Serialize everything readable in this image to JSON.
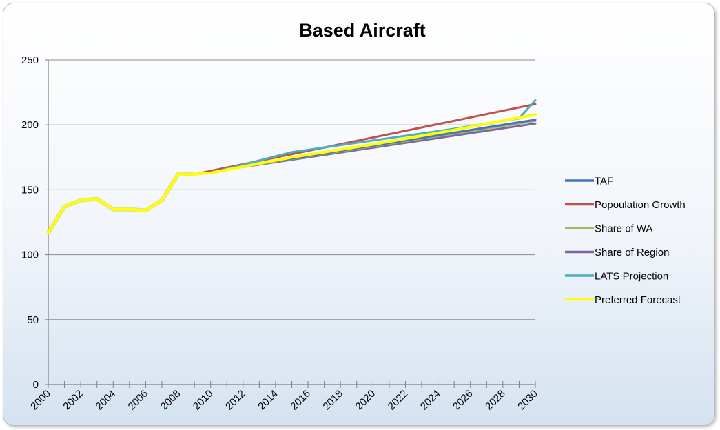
{
  "chart_data": {
    "type": "line",
    "title": "Based Aircraft",
    "xlabel": "",
    "ylabel": "",
    "ylim": [
      0,
      250
    ],
    "yticks": [
      0,
      50,
      100,
      150,
      200,
      250
    ],
    "xlim": [
      2000,
      2030
    ],
    "xticks": [
      2000,
      2002,
      2004,
      2006,
      2008,
      2010,
      2012,
      2014,
      2016,
      2018,
      2020,
      2022,
      2024,
      2026,
      2028,
      2030
    ],
    "grid": "horizontal",
    "legend_position": "right",
    "history": {
      "x": [
        2000,
        2001,
        2002,
        2003,
        2004,
        2005,
        2006,
        2007,
        2008,
        2009
      ],
      "y": [
        117,
        137,
        142,
        143,
        135,
        135,
        134,
        142,
        162,
        162
      ]
    },
    "series": [
      {
        "name": "TAF",
        "color": "#4472c4",
        "x": [
          2009,
          2030
        ],
        "y": [
          162,
          204
        ]
      },
      {
        "name": "Popoulation Growth",
        "color": "#c0504d",
        "x": [
          2009,
          2030
        ],
        "y": [
          162,
          216
        ]
      },
      {
        "name": "Share of WA",
        "color": "#9bbb59",
        "x": [
          2009,
          2030
        ],
        "y": [
          162,
          203
        ]
      },
      {
        "name": "Share of Region",
        "color": "#8064a2",
        "x": [
          2009,
          2030
        ],
        "y": [
          162,
          201
        ]
      },
      {
        "name": "LATS Projection",
        "color": "#4bacc6",
        "x": [
          2009,
          2010,
          2015,
          2020,
          2025,
          2029,
          2030
        ],
        "y": [
          162,
          163,
          179,
          188,
          197,
          205,
          219
        ]
      },
      {
        "name": "Preferred Forecast",
        "color": "#ffff00",
        "x": [
          2009,
          2010,
          2015,
          2020,
          2025,
          2030
        ],
        "y": [
          162,
          163,
          175,
          185,
          196,
          208
        ]
      }
    ]
  }
}
